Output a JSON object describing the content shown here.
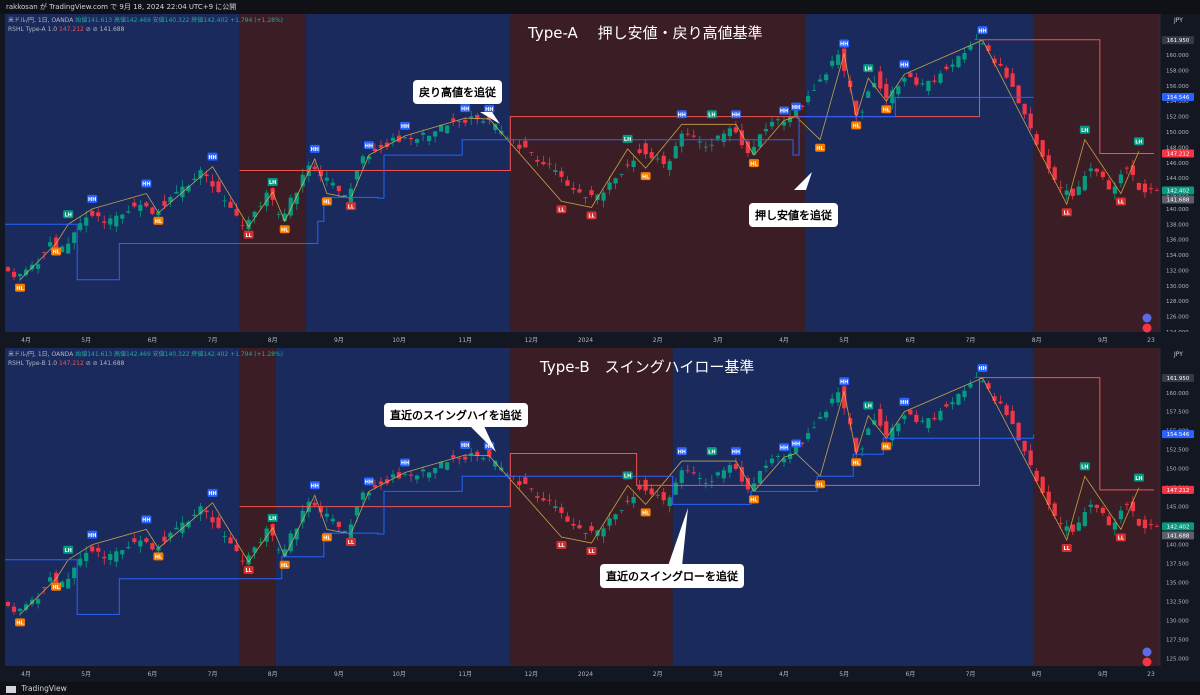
{
  "topbar": {
    "text": "rakkosan が TradingView.com で 9月 18, 2024 22:04 UTC+9 に公開"
  },
  "footer": {
    "brand": "TradingView"
  },
  "currency": "JPY",
  "x_labels": [
    {
      "label": "4月",
      "i": 3
    },
    {
      "label": "5月",
      "i": 13
    },
    {
      "label": "6月",
      "i": 24
    },
    {
      "label": "7月",
      "i": 34
    },
    {
      "label": "8月",
      "i": 44
    },
    {
      "label": "9月",
      "i": 55
    },
    {
      "label": "10月",
      "i": 65
    },
    {
      "label": "11月",
      "i": 76
    },
    {
      "label": "12月",
      "i": 87
    },
    {
      "label": "2024",
      "i": 96
    },
    {
      "label": "2月",
      "i": 108
    },
    {
      "label": "3月",
      "i": 118
    },
    {
      "label": "4月",
      "i": 129
    },
    {
      "label": "5月",
      "i": 139
    },
    {
      "label": "6月",
      "i": 150
    },
    {
      "label": "7月",
      "i": 160
    },
    {
      "label": "8月",
      "i": 171
    },
    {
      "label": "9月",
      "i": 182
    },
    {
      "label": "23",
      "i": 190
    }
  ],
  "panels": [
    {
      "id": "type-a",
      "title": "Type-A　 押し安値・戻り高値基準",
      "legend_symbol": "米ドル/円, 1日, OANDA",
      "legend_ohlc": "始値141.613 高値142.469 安値140.322 終値142.402 +1.794 (+1.28%)",
      "legend_indicator": "RSHL Type-A 1.0",
      "indicator_v1": "147.212",
      "indicator_v2": "141.688",
      "callouts": [
        {
          "text": "戻り高値を追従"
        },
        {
          "text": "押し安値を追従"
        }
      ],
      "y_ticks": [
        "160.000",
        "158.000",
        "156.000",
        "154.000",
        "152.000",
        "150.000",
        "148.000",
        "146.000",
        "144.000",
        "142.000",
        "140.000",
        "138.000",
        "136.000",
        "134.000",
        "132.000",
        "130.000",
        "128.000",
        "126.000",
        "124.000"
      ],
      "badges": [
        {
          "text": "161.950",
          "color": "#363a45"
        },
        {
          "text": "154.546",
          "color": "#2962ff"
        },
        {
          "text": "147.212",
          "color": "#f23645"
        },
        {
          "text": "142.402",
          "color": "#089981"
        },
        {
          "text": "141.688",
          "color": "#5d606b"
        }
      ]
    },
    {
      "id": "type-b",
      "title": "Type-B　スイングハイロー基準",
      "legend_symbol": "米ドル/円, 1日, OANDA",
      "legend_ohlc": "始値141.613 高値142.469 安値140.322 終値142.402 +1.794 (+1.28%)",
      "legend_indicator": "RSHL Type-B 1.0",
      "indicator_v1": "147.212",
      "indicator_v2": "141.688",
      "callouts": [
        {
          "text": "直近のスイングハイを追従"
        },
        {
          "text": "直近のスイングローを追従"
        }
      ],
      "y_ticks": [
        "160.000",
        "157.500",
        "155.000",
        "152.500",
        "150.000",
        "147.500",
        "145.000",
        "142.500",
        "140.000",
        "137.500",
        "135.000",
        "132.500",
        "130.000",
        "127.500",
        "125.000"
      ],
      "badges": [
        {
          "text": "161.950",
          "color": "#363a45"
        },
        {
          "text": "154.546",
          "color": "#2962ff"
        },
        {
          "text": "147.212",
          "color": "#f23645"
        },
        {
          "text": "142.402",
          "color": "#089981"
        },
        {
          "text": "141.688",
          "color": "#5d606b"
        }
      ]
    }
  ],
  "chart_data": {
    "type": "line",
    "title": "米ドル/円, 1日, OANDA",
    "ylabel": "JPY",
    "ylim": [
      124,
      163
    ],
    "bar_count": 192,
    "regimes": [
      {
        "from": 0,
        "to": 39,
        "state": "bull",
        "color": "#1a2a5c"
      },
      {
        "from": 39,
        "to": 50,
        "state": "bear",
        "color": "#3b1e25"
      },
      {
        "from": 50,
        "to": 84,
        "state": "bull",
        "color": "#1a2a5c"
      },
      {
        "from": 84,
        "to": 133,
        "state": "bear",
        "color": "#3b1e25"
      },
      {
        "from": 133,
        "to": 171,
        "state": "bull",
        "color": "#1a2a5c"
      },
      {
        "from": 171,
        "to": 192,
        "state": "bear",
        "color": "#3b1e25"
      }
    ],
    "regimes_b": [
      {
        "from": 0,
        "to": 39,
        "state": "bull",
        "color": "#1a2a5c"
      },
      {
        "from": 39,
        "to": 45,
        "state": "bear",
        "color": "#3b1e25"
      },
      {
        "from": 45,
        "to": 84,
        "state": "bull",
        "color": "#1a2a5c"
      },
      {
        "from": 84,
        "to": 111,
        "state": "bear",
        "color": "#3b1e25"
      },
      {
        "from": 111,
        "to": 171,
        "state": "bull",
        "color": "#1a2a5c"
      },
      {
        "from": 171,
        "to": 192,
        "state": "bear",
        "color": "#3b1e25"
      }
    ],
    "price_path": [
      {
        "i": 0,
        "p": 133.0
      },
      {
        "i": 2,
        "p": 130.8
      },
      {
        "i": 5,
        "p": 132.5
      },
      {
        "i": 8,
        "p": 135.5
      },
      {
        "i": 10,
        "p": 134.5
      },
      {
        "i": 14,
        "p": 139.5
      },
      {
        "i": 17,
        "p": 138.0
      },
      {
        "i": 23,
        "p": 141.0
      },
      {
        "i": 25,
        "p": 139.5
      },
      {
        "i": 33,
        "p": 144.9
      },
      {
        "i": 40,
        "p": 137.7
      },
      {
        "i": 44,
        "p": 142.0
      },
      {
        "i": 46,
        "p": 138.4
      },
      {
        "i": 51,
        "p": 146.0
      },
      {
        "i": 57,
        "p": 141.4
      },
      {
        "i": 60,
        "p": 147.0
      },
      {
        "i": 65,
        "p": 149.0
      },
      {
        "i": 70,
        "p": 149.5
      },
      {
        "i": 76,
        "p": 151.6
      },
      {
        "i": 80,
        "p": 151.7
      },
      {
        "i": 84,
        "p": 149.0
      },
      {
        "i": 90,
        "p": 146.0
      },
      {
        "i": 95,
        "p": 142.0
      },
      {
        "i": 99,
        "p": 141.5
      },
      {
        "i": 103,
        "p": 145.0
      },
      {
        "i": 106,
        "p": 148.0
      },
      {
        "i": 110,
        "p": 145.5
      },
      {
        "i": 113,
        "p": 150.5
      },
      {
        "i": 117,
        "p": 148.0
      },
      {
        "i": 121,
        "p": 150.5
      },
      {
        "i": 124,
        "p": 147.0
      },
      {
        "i": 127,
        "p": 151.0
      },
      {
        "i": 131,
        "p": 152.0
      },
      {
        "i": 135,
        "p": 156.0
      },
      {
        "i": 139,
        "p": 160.2
      },
      {
        "i": 142,
        "p": 151.9
      },
      {
        "i": 145,
        "p": 157.0
      },
      {
        "i": 147,
        "p": 154.5
      },
      {
        "i": 150,
        "p": 157.5
      },
      {
        "i": 153,
        "p": 155.8
      },
      {
        "i": 158,
        "p": 159.0
      },
      {
        "i": 162,
        "p": 161.95
      },
      {
        "i": 167,
        "p": 157.0
      },
      {
        "i": 171,
        "p": 150.0
      },
      {
        "i": 175,
        "p": 143.0
      },
      {
        "i": 178,
        "p": 142.0
      },
      {
        "i": 181,
        "p": 146.0
      },
      {
        "i": 184,
        "p": 142.5
      },
      {
        "i": 187,
        "p": 145.5
      },
      {
        "i": 189,
        "p": 142.4
      },
      {
        "i": 191,
        "p": 142.4
      }
    ],
    "swings": [
      {
        "i": 2,
        "p": 130.8,
        "label": "HL"
      },
      {
        "i": 8,
        "p": 135.5,
        "label": "HL"
      },
      {
        "i": 10,
        "p": 138.0,
        "label": "LH"
      },
      {
        "i": 14,
        "p": 140.0,
        "label": "HH"
      },
      {
        "i": 23,
        "p": 142.0,
        "label": "HH"
      },
      {
        "i": 25,
        "p": 139.5,
        "label": "HL"
      },
      {
        "i": 34,
        "p": 145.5,
        "label": "HH"
      },
      {
        "i": 40,
        "p": 137.7,
        "label": "LL"
      },
      {
        "i": 44,
        "p": 142.2,
        "label": "LH"
      },
      {
        "i": 46,
        "p": 138.4,
        "label": "HL"
      },
      {
        "i": 51,
        "p": 146.5,
        "label": "HH"
      },
      {
        "i": 53,
        "p": 142.0,
        "label": "HL"
      },
      {
        "i": 57,
        "p": 141.4,
        "label": "LL"
      },
      {
        "i": 60,
        "p": 147.0,
        "label": "HH"
      },
      {
        "i": 66,
        "p": 149.5,
        "label": "HH"
      },
      {
        "i": 76,
        "p": 151.8,
        "label": "HH"
      },
      {
        "i": 80,
        "p": 151.7,
        "label": "HH"
      },
      {
        "i": 92,
        "p": 141.0,
        "label": "LL"
      },
      {
        "i": 97,
        "p": 140.2,
        "label": "LL"
      },
      {
        "i": 103,
        "p": 147.8,
        "label": "LH"
      },
      {
        "i": 106,
        "p": 145.3,
        "label": "HL"
      },
      {
        "i": 112,
        "p": 151.0,
        "label": "HH"
      },
      {
        "i": 117,
        "p": 151.0,
        "label": "LH"
      },
      {
        "i": 121,
        "p": 151.0,
        "label": "HH"
      },
      {
        "i": 124,
        "p": 147.0,
        "label": "HL"
      },
      {
        "i": 129,
        "p": 151.5,
        "label": "HH"
      },
      {
        "i": 131,
        "p": 152.0,
        "label": "HH"
      },
      {
        "i": 135,
        "p": 149.0,
        "label": "HL"
      },
      {
        "i": 139,
        "p": 160.2,
        "label": "HH"
      },
      {
        "i": 141,
        "p": 151.9,
        "label": "HL"
      },
      {
        "i": 143,
        "p": 157.0,
        "label": "LH"
      },
      {
        "i": 146,
        "p": 154.0,
        "label": "HL"
      },
      {
        "i": 149,
        "p": 157.5,
        "label": "HH"
      },
      {
        "i": 162,
        "p": 161.95,
        "label": "HH"
      },
      {
        "i": 176,
        "p": 140.6,
        "label": "LL"
      },
      {
        "i": 179,
        "p": 149.0,
        "label": "LH"
      },
      {
        "i": 185,
        "p": 142.0,
        "label": "LL"
      },
      {
        "i": 188,
        "p": 147.5,
        "label": "LH"
      }
    ],
    "resistance_a": [
      {
        "i": 39,
        "p": 145.0
      },
      {
        "i": 40,
        "p": 145.0
      },
      {
        "i": 48,
        "p": 145.0
      },
      {
        "i": 84,
        "p": 152.0
      },
      {
        "i": 133,
        "p": 152.0
      },
      {
        "i": 162,
        "p": 162.0
      },
      {
        "i": 171,
        "p": 162.0
      },
      {
        "i": 181,
        "p": 162.0
      },
      {
        "i": 182,
        "p": 147.2
      },
      {
        "i": 191,
        "p": 147.2
      }
    ],
    "support_a": [
      {
        "i": 0,
        "p": 138.0
      },
      {
        "i": 11,
        "p": 138.0
      },
      {
        "i": 12,
        "p": 130.8
      },
      {
        "i": 18,
        "p": 130.8
      },
      {
        "i": 19,
        "p": 135.5
      },
      {
        "i": 38,
        "p": 135.5
      },
      {
        "i": 52,
        "p": 138.4
      },
      {
        "i": 53,
        "p": 141.5
      },
      {
        "i": 62,
        "p": 141.4
      },
      {
        "i": 63,
        "p": 147.0
      },
      {
        "i": 75,
        "p": 147.0
      },
      {
        "i": 76,
        "p": 149.0
      },
      {
        "i": 84,
        "p": 149.0
      },
      {
        "i": 131,
        "p": 147.0
      },
      {
        "i": 132,
        "p": 152.0
      },
      {
        "i": 147,
        "p": 152.0
      },
      {
        "i": 148,
        "p": 154.5
      },
      {
        "i": 171,
        "p": 154.5
      }
    ],
    "resistance_b": [
      {
        "i": 39,
        "p": 145.0
      },
      {
        "i": 45,
        "p": 145.0
      },
      {
        "i": 84,
        "p": 152.0
      },
      {
        "i": 104,
        "p": 152.0
      },
      {
        "i": 105,
        "p": 147.8
      },
      {
        "i": 111,
        "p": 147.8
      },
      {
        "i": 162,
        "p": 162.0
      },
      {
        "i": 171,
        "p": 162.0
      },
      {
        "i": 181,
        "p": 162.0
      },
      {
        "i": 182,
        "p": 147.2
      },
      {
        "i": 191,
        "p": 147.2
      }
    ],
    "support_b": [
      {
        "i": 0,
        "p": 138.0
      },
      {
        "i": 11,
        "p": 138.0
      },
      {
        "i": 12,
        "p": 130.8
      },
      {
        "i": 18,
        "p": 130.8
      },
      {
        "i": 19,
        "p": 135.5
      },
      {
        "i": 38,
        "p": 135.5
      },
      {
        "i": 46,
        "p": 138.4
      },
      {
        "i": 53,
        "p": 141.5
      },
      {
        "i": 62,
        "p": 141.4
      },
      {
        "i": 63,
        "p": 147.0
      },
      {
        "i": 75,
        "p": 147.0
      },
      {
        "i": 76,
        "p": 149.0
      },
      {
        "i": 84,
        "p": 149.0
      },
      {
        "i": 111,
        "p": 145.3
      },
      {
        "i": 124,
        "p": 147.0
      },
      {
        "i": 135,
        "p": 149.0
      },
      {
        "i": 141,
        "p": 151.9
      },
      {
        "i": 146,
        "p": 154.0
      },
      {
        "i": 171,
        "p": 154.5
      }
    ],
    "last_value": 142.402,
    "high_value": 161.95
  }
}
